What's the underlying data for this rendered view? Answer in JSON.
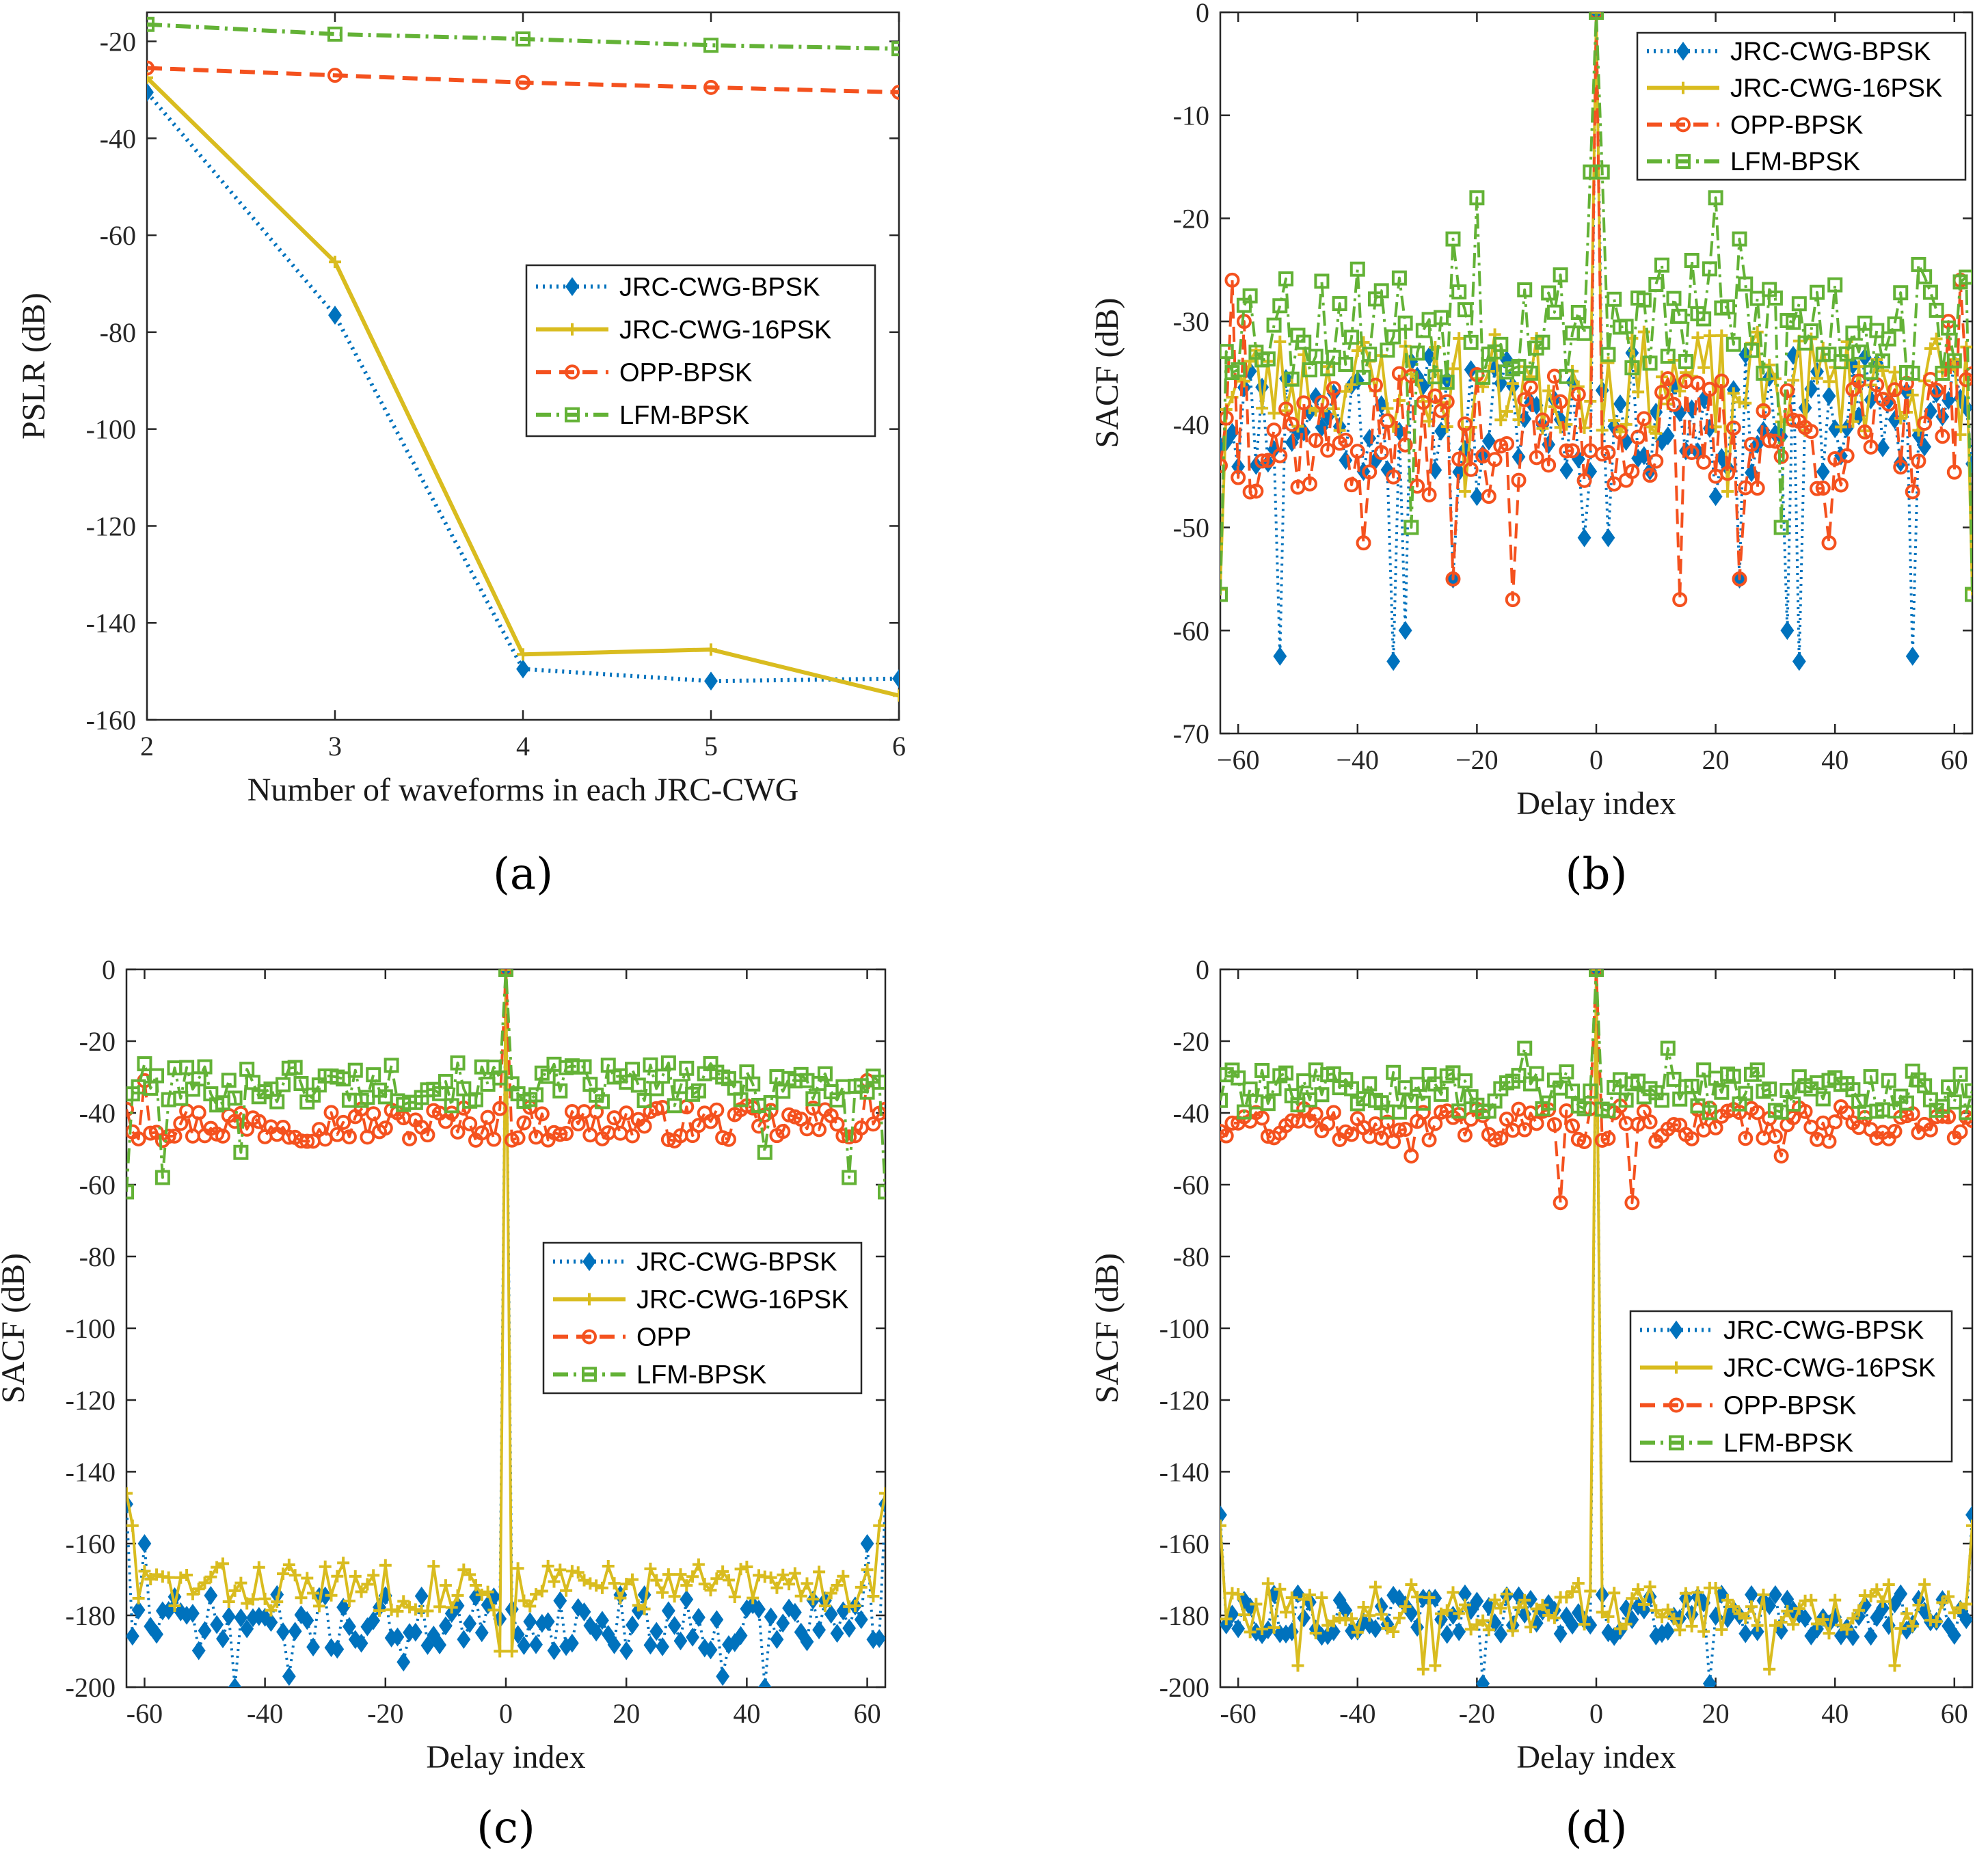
{
  "colors": {
    "jrc_bpsk": "#0072BD",
    "jrc_16psk": "#D9BC1F",
    "opp": "#F4511E",
    "lfm": "#63B236"
  },
  "chart_data": [
    {
      "id": "a",
      "type": "line",
      "caption": "(a)",
      "xlabel": "Number of waveforms in each JRC-CWG",
      "ylabel": "PSLR (dB)",
      "xlim": [
        2,
        6
      ],
      "ylim": [
        -160,
        -14
      ],
      "xticks": [
        "2",
        "3",
        "4",
        "5",
        "6"
      ],
      "yticks": [
        "-20",
        "-40",
        "-60",
        "-80",
        "-100",
        "-120",
        "-140",
        "-160"
      ],
      "legend_position": "middle-right",
      "legend": [
        "JRC-CWG-BPSK",
        "JRC-CWG-16PSK",
        "OPP-BPSK",
        "LFM-BPSK"
      ],
      "x": [
        2,
        3,
        4,
        5,
        6
      ],
      "series": [
        {
          "name": "JRC-CWG-BPSK",
          "values": [
            -30.5,
            -76.5,
            -149.5,
            -152,
            -151.5
          ]
        },
        {
          "name": "JRC-CWG-16PSK",
          "values": [
            -27.5,
            -65.5,
            -146.5,
            -145.5,
            -155
          ]
        },
        {
          "name": "OPP-BPSK",
          "values": [
            -25.5,
            -27,
            -28.5,
            -29.5,
            -30.5
          ]
        },
        {
          "name": "LFM-BPSK",
          "values": [
            -16.5,
            -18.5,
            -19.5,
            -20.8,
            -21.5
          ]
        }
      ]
    },
    {
      "id": "b",
      "type": "line",
      "caption": "(b)",
      "xlabel": "Delay index",
      "ylabel": "SACF (dB)",
      "xlim": [
        -63,
        63
      ],
      "ylim": [
        -70,
        0
      ],
      "xticks": [
        "−60",
        "−40",
        "−20",
        "0",
        "20",
        "40",
        "60"
      ],
      "yticks": [
        "0",
        "-10",
        "-20",
        "-30",
        "-40",
        "-50",
        "-60",
        "-70"
      ],
      "legend_position": "top-right",
      "legend": [
        "JRC-CWG-BPSK",
        "JRC-CWG-16PSK",
        "OPP-BPSK",
        "LFM-BPSK"
      ],
      "x_range": [
        -63,
        63
      ],
      "series": [
        {
          "name": "JRC-CWG-BPSK",
          "peak": 0,
          "base": -39,
          "spread": 6,
          "dips": [
            [
              -53,
              -62.5
            ],
            [
              -34,
              -63
            ],
            [
              -32,
              -60
            ],
            [
              -24,
              -55
            ],
            [
              -20,
              -47
            ],
            [
              -2,
              -51
            ],
            [
              2,
              -51
            ],
            [
              20,
              -47
            ],
            [
              24,
              -55
            ],
            [
              32,
              -60
            ],
            [
              34,
              -63
            ],
            [
              53,
              -62.5
            ]
          ],
          "seed": 11
        },
        {
          "name": "JRC-CWG-16PSK",
          "peak": 0,
          "base": -36,
          "spread": 5,
          "dips": [
            [
              -63,
              -56
            ],
            [
              -22,
              -46.5
            ],
            [
              -5,
              -40
            ],
            [
              5,
              -40
            ],
            [
              22,
              -46.5
            ],
            [
              63,
              -56
            ]
          ],
          "seed": 23
        },
        {
          "name": "OPP-BPSK",
          "peak": 0,
          "base": -41,
          "spread": 6,
          "dips": [
            [
              -14,
              -57
            ],
            [
              14,
              -57
            ],
            [
              -39,
              -51.5
            ],
            [
              39,
              -51.5
            ],
            [
              -24,
              -55
            ],
            [
              24,
              -55
            ]
          ],
          "highs": [
            [
              -61,
              -26
            ],
            [
              61,
              -26
            ],
            [
              -59,
              -30
            ],
            [
              59,
              -30
            ]
          ],
          "seed": 37
        },
        {
          "name": "LFM-BPSK",
          "peak": 0,
          "base": -30,
          "spread": 6,
          "dips": [
            [
              -63,
              -56.5
            ],
            [
              63,
              -56.5
            ],
            [
              -31,
              -50
            ],
            [
              31,
              -50
            ]
          ],
          "highs": [
            [
              -20,
              -18
            ],
            [
              20,
              -18
            ],
            [
              -24,
              -22
            ],
            [
              24,
              -22
            ],
            [
              -1,
              -15.5
            ],
            [
              1,
              -15.5
            ]
          ],
          "seed": 53
        }
      ]
    },
    {
      "id": "c",
      "type": "line",
      "caption": "(c)",
      "xlabel": "Delay index",
      "ylabel": "SACF (dB)",
      "xlim": [
        -63,
        63
      ],
      "ylim": [
        -200,
        0
      ],
      "xticks": [
        "-60",
        "-40",
        "-20",
        "0",
        "20",
        "40",
        "60"
      ],
      "yticks": [
        "0",
        "-20",
        "-40",
        "-60",
        "-80",
        "-100",
        "-120",
        "-140",
        "-160",
        "-180",
        "-200"
      ],
      "legend_position": "middle-right",
      "legend": [
        "JRC-CWG-BPSK",
        "JRC-CWG-16PSK",
        "OPP",
        "LFM-BPSK"
      ],
      "x_range": [
        -63,
        63
      ],
      "series": [
        {
          "name": "JRC-CWG-BPSK",
          "peak": 0,
          "base": -182,
          "spread": 8,
          "dips": [
            [
              -45,
              -200
            ],
            [
              -36,
              -197
            ],
            [
              -17,
              -193
            ],
            [
              36,
              -197
            ],
            [
              43,
              -200
            ]
          ],
          "highs": [
            [
              -63,
              -149
            ],
            [
              63,
              -149
            ],
            [
              -60,
              -160
            ],
            [
              60,
              -160
            ]
          ],
          "seed": 71
        },
        {
          "name": "JRC-CWG-16PSK",
          "peak": 0,
          "base": -172,
          "spread": 7,
          "dips": [
            [
              -1,
              -190
            ],
            [
              1,
              -190
            ]
          ],
          "highs": [
            [
              -63,
              -146
            ],
            [
              63,
              -146
            ],
            [
              -62,
              -155
            ],
            [
              62,
              -155
            ]
          ],
          "seed": 83
        },
        {
          "name": "OPP",
          "peak": 0,
          "base": -43,
          "spread": 5,
          "highs": [
            [
              -60,
              -31
            ],
            [
              60,
              -31
            ],
            [
              -63,
              -39
            ],
            [
              63,
              -39
            ]
          ],
          "seed": 97
        },
        {
          "name": "LFM-BPSK",
          "peak": 0,
          "base": -32,
          "spread": 6,
          "dips": [
            [
              -63,
              -62
            ],
            [
              63,
              -62
            ],
            [
              -57,
              -58
            ],
            [
              57,
              -58
            ],
            [
              -44,
              -51
            ],
            [
              43,
              -51
            ]
          ],
          "seed": 101
        }
      ]
    },
    {
      "id": "d",
      "type": "line",
      "caption": "(d)",
      "xlabel": "Delay index",
      "ylabel": "SACF (dB)",
      "xlim": [
        -63,
        63
      ],
      "ylim": [
        -200,
        0
      ],
      "xticks": [
        "-60",
        "-40",
        "-20",
        "0",
        "20",
        "40",
        "60"
      ],
      "yticks": [
        "0",
        "-20",
        "-40",
        "-60",
        "-80",
        "-100",
        "-120",
        "-140",
        "-160",
        "-180",
        "-200"
      ],
      "legend_position": "middle-right",
      "legend": [
        "JRC-CWG-BPSK",
        "JRC-CWG-16PSK",
        "OPP-BPSK",
        "LFM-BPSK"
      ],
      "x_range": [
        -63,
        63
      ],
      "series": [
        {
          "name": "JRC-CWG-BPSK",
          "peak": 0,
          "base": -180,
          "spread": 6,
          "dips": [
            [
              -19,
              -199
            ],
            [
              19,
              -199
            ]
          ],
          "highs": [
            [
              -63,
              -152
            ],
            [
              63,
              -152
            ]
          ],
          "seed": 113
        },
        {
          "name": "JRC-CWG-16PSK",
          "peak": 0,
          "base": -178,
          "spread": 7,
          "dips": [
            [
              -50,
              -194
            ],
            [
              -29,
              -195
            ],
            [
              -27,
              -194
            ],
            [
              29,
              -195
            ],
            [
              50,
              -194
            ]
          ],
          "highs": [
            [
              -63,
              -155
            ],
            [
              63,
              -155
            ]
          ],
          "seed": 127
        },
        {
          "name": "OPP-BPSK",
          "peak": 0,
          "base": -43,
          "spread": 5,
          "dips": [
            [
              -6,
              -65
            ],
            [
              6,
              -65
            ],
            [
              -31,
              -52
            ],
            [
              31,
              -52
            ]
          ],
          "seed": 131
        },
        {
          "name": "LFM-BPSK",
          "peak": 0,
          "base": -34,
          "spread": 6,
          "highs": [
            [
              -12,
              -22
            ],
            [
              12,
              -22
            ]
          ],
          "seed": 139
        }
      ]
    }
  ]
}
